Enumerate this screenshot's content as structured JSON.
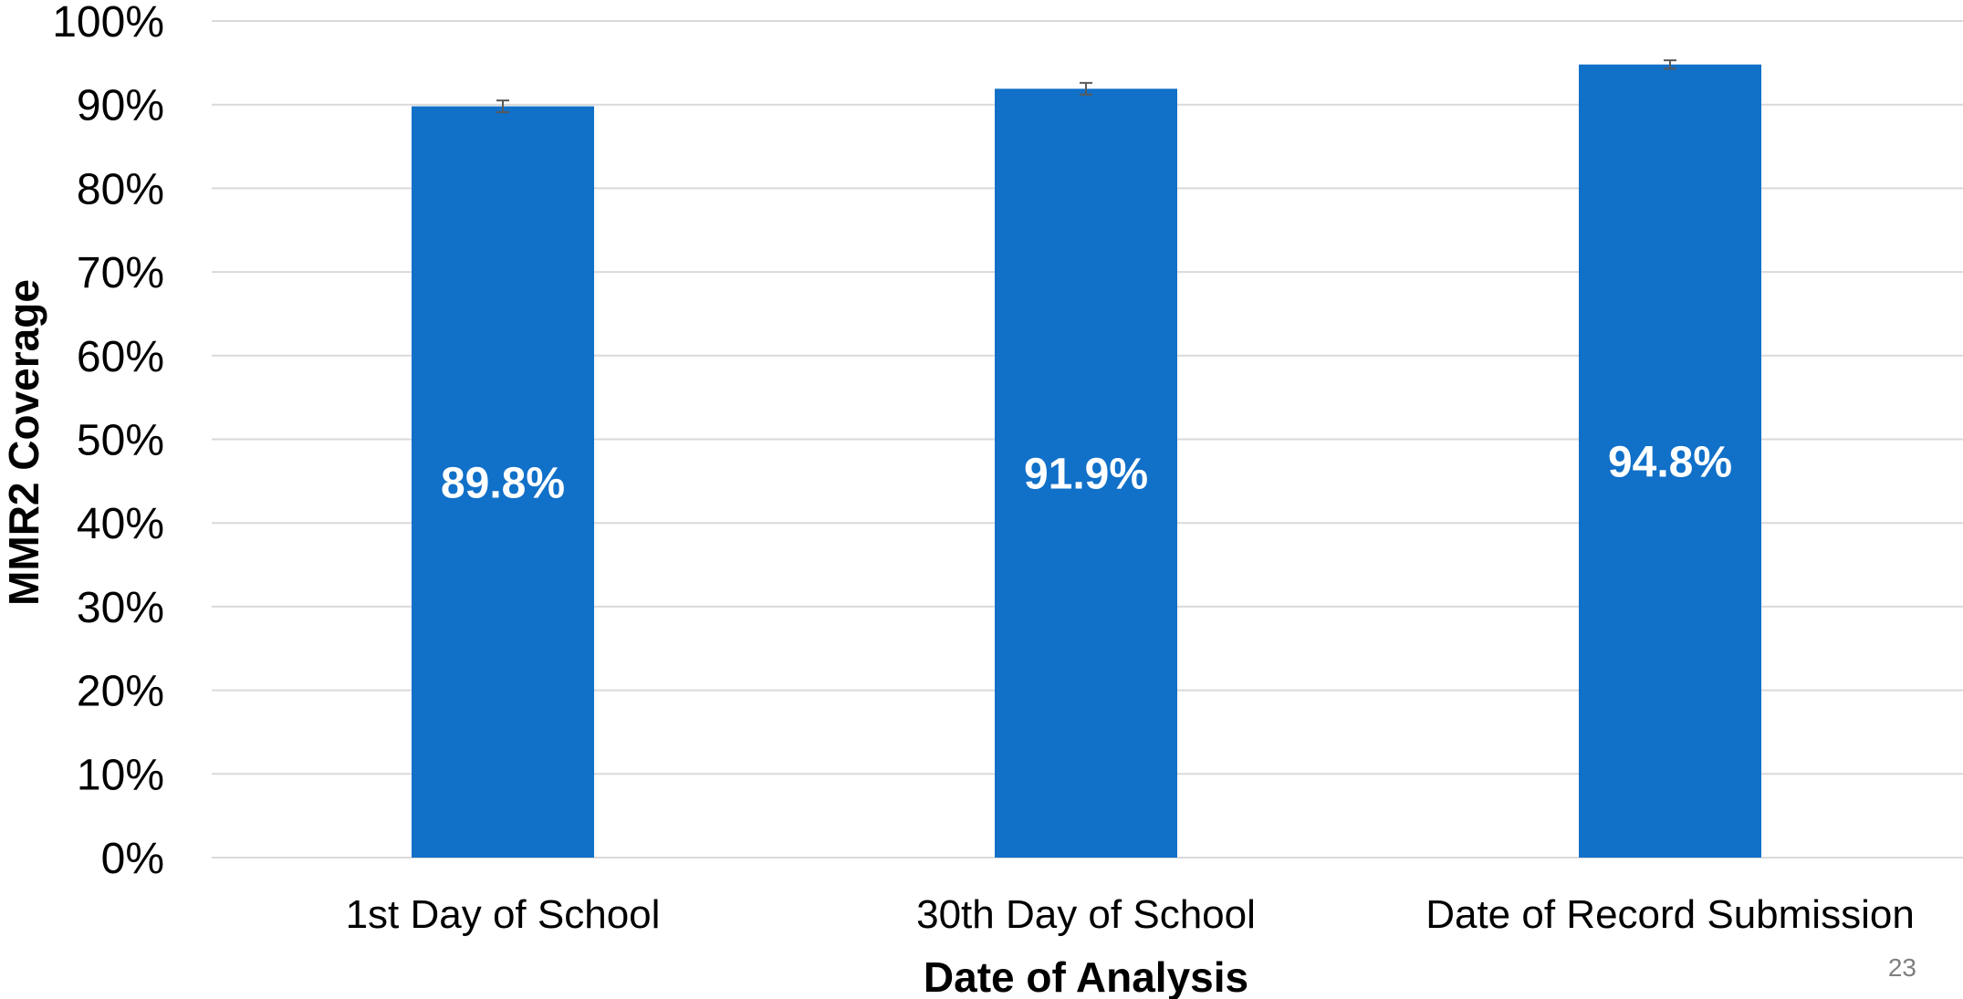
{
  "chart_data": {
    "type": "bar",
    "categories": [
      "1st Day of School",
      "30th Day of School",
      "Date of Record Submission"
    ],
    "values": [
      89.8,
      91.9,
      94.8
    ],
    "data_labels": [
      "89.8%",
      "91.9%",
      "94.8%"
    ],
    "error_bars": [
      0.7,
      0.7,
      0.5
    ],
    "xlabel": "Date of Analysis",
    "ylabel": "MMR2  Coverage",
    "ylim": [
      0,
      100
    ],
    "yticks": [
      0,
      10,
      20,
      30,
      40,
      50,
      60,
      70,
      80,
      90,
      100
    ],
    "ytick_labels": [
      "0%",
      "10%",
      "20%",
      "30%",
      "40%",
      "50%",
      "60%",
      "70%",
      "80%",
      "90%",
      "100%"
    ],
    "grid": true,
    "legend": "none",
    "bar_color": "#1170C8",
    "gridline_color": "#D9D9D9"
  },
  "page_number": "23"
}
